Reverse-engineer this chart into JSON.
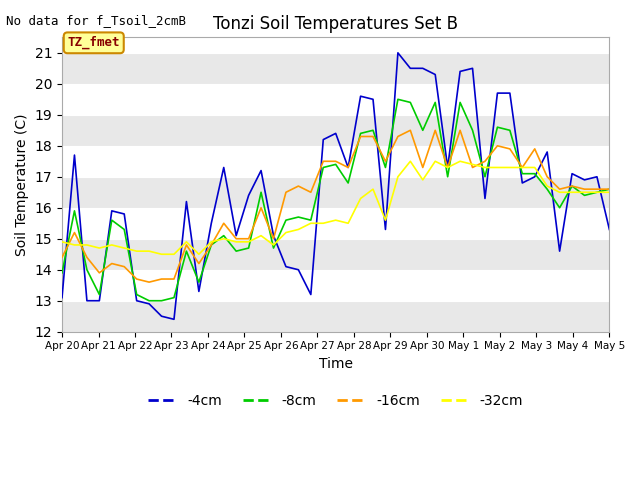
{
  "title": "Tonzi Soil Temperatures Set B",
  "xlabel": "Time",
  "ylabel": "Soil Temperature (C)",
  "top_left_text": "No data for f_Tsoil_2cmB",
  "annotation_box_text": "TZ_fmet",
  "annotation_box_color": "#ffff99",
  "annotation_box_edge_color": "#cc8800",
  "annotation_text_color": "#880000",
  "ylim": [
    12.0,
    21.5
  ],
  "yticks": [
    12.0,
    13.0,
    14.0,
    15.0,
    16.0,
    17.0,
    18.0,
    19.0,
    20.0,
    21.0
  ],
  "fig_bg_color": "#ffffff",
  "plot_bg_color": "#ffffff",
  "band_color": "#e8e8e8",
  "line_colors": {
    "4cm": "#0000cc",
    "8cm": "#00cc00",
    "16cm": "#ff9900",
    "32cm": "#ffff00"
  },
  "legend_labels": [
    "-4cm",
    "-8cm",
    "-16cm",
    "-32cm"
  ],
  "xtick_labels": [
    "Apr 20",
    "Apr 21",
    "Apr 22",
    "Apr 23",
    "Apr 24",
    "Apr 25",
    "Apr 26",
    "Apr 27",
    "Apr 28",
    "Apr 29",
    "Apr 30",
    "May 1",
    "May 2",
    "May 3",
    "May 4",
    "May 5"
  ],
  "data_4cm": [
    13.1,
    17.7,
    13.0,
    13.0,
    15.9,
    15.8,
    13.0,
    12.9,
    12.5,
    12.4,
    16.2,
    13.3,
    15.5,
    17.3,
    15.1,
    16.4,
    17.2,
    15.1,
    14.1,
    14.0,
    13.2,
    18.2,
    18.4,
    17.3,
    19.6,
    19.5,
    15.3,
    21.0,
    20.5,
    20.5,
    20.3,
    17.3,
    20.4,
    20.5,
    16.3,
    19.7,
    19.7,
    16.8,
    17.0,
    17.8,
    14.6,
    17.1,
    16.9,
    17.0,
    15.3
  ],
  "data_8cm": [
    13.9,
    15.9,
    14.0,
    13.2,
    15.6,
    15.3,
    13.2,
    13.0,
    13.0,
    13.1,
    14.6,
    13.6,
    14.8,
    15.1,
    14.6,
    14.7,
    16.5,
    14.7,
    15.6,
    15.7,
    15.6,
    17.3,
    17.4,
    16.8,
    18.4,
    18.5,
    17.3,
    19.5,
    19.4,
    18.5,
    19.4,
    17.0,
    19.4,
    18.5,
    17.0,
    18.6,
    18.5,
    17.1,
    17.1,
    16.6,
    16.0,
    16.7,
    16.4,
    16.5,
    16.6
  ],
  "data_16cm": [
    14.4,
    15.2,
    14.4,
    13.9,
    14.2,
    14.1,
    13.7,
    13.6,
    13.7,
    13.7,
    14.8,
    14.2,
    14.8,
    15.5,
    15.0,
    15.0,
    16.0,
    15.0,
    16.5,
    16.7,
    16.5,
    17.5,
    17.5,
    17.3,
    18.3,
    18.3,
    17.5,
    18.3,
    18.5,
    17.3,
    18.5,
    17.3,
    18.5,
    17.3,
    17.5,
    18.0,
    17.9,
    17.3,
    17.9,
    17.0,
    16.6,
    16.7,
    16.6,
    16.6,
    16.6
  ],
  "data_32cm": [
    14.9,
    14.8,
    14.8,
    14.7,
    14.8,
    14.7,
    14.6,
    14.6,
    14.5,
    14.5,
    14.9,
    14.5,
    14.9,
    15.0,
    14.9,
    14.9,
    15.1,
    14.8,
    15.2,
    15.3,
    15.5,
    15.5,
    15.6,
    15.5,
    16.3,
    16.6,
    15.6,
    17.0,
    17.5,
    16.9,
    17.5,
    17.3,
    17.5,
    17.4,
    17.3,
    17.3,
    17.3,
    17.3,
    17.3,
    16.7,
    16.5,
    16.5,
    16.5,
    16.5,
    16.5
  ]
}
